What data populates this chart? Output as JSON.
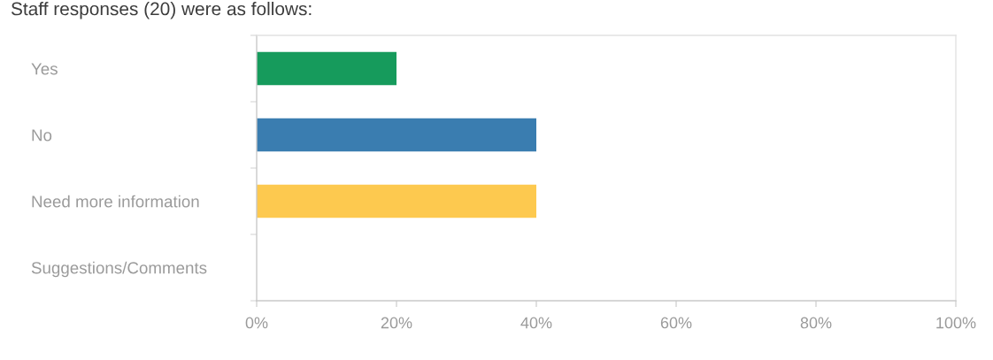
{
  "chart_data": {
    "type": "bar",
    "orientation": "horizontal",
    "title": "Staff responses (20) were as follows:",
    "categories": [
      "Yes",
      "No",
      "Need more information",
      "Suggestions/Comments"
    ],
    "values": [
      20,
      40,
      40,
      0
    ],
    "colors": [
      "#169b5c",
      "#3a7db0",
      "#fdc94f",
      null
    ],
    "xlim": [
      0,
      100
    ],
    "xticks": [
      {
        "value": 0,
        "label": "0%"
      },
      {
        "value": 20,
        "label": "20%"
      },
      {
        "value": 40,
        "label": "40%"
      },
      {
        "value": 60,
        "label": "60%"
      },
      {
        "value": 80,
        "label": "80%"
      },
      {
        "value": 100,
        "label": "100%"
      }
    ],
    "grid": false,
    "legend": false
  }
}
